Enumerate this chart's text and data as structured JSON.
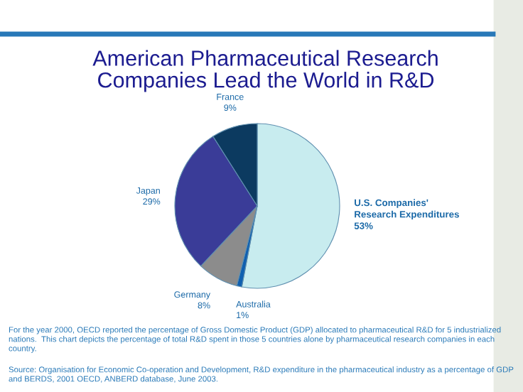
{
  "chart_data": {
    "type": "pie",
    "title": "American Pharmaceutical Research\nCompanies Lead the World in R&D",
    "categories": [
      "U.S. Companies'\nResearch Expenditures",
      "Australia",
      "Germany",
      "Japan",
      "France"
    ],
    "values": [
      53,
      1,
      8,
      29,
      9
    ],
    "value_labels": [
      "53%",
      "1%",
      "8%",
      "29%",
      "9%"
    ],
    "colors": [
      "#c8ecef",
      "#1060b0",
      "#8c8c8c",
      "#3a3c98",
      "#0c3a60"
    ],
    "annotations": [
      "For the year 2000, OECD reported the percentage of Gross Domestic Product (GDP) allocated to pharmaceutical R&D for 5 industrialized nations.  This chart depicts the percentage of total R&D spent in those 5 countries alone by pharmaceutical research companies in each country.",
      "Source: Organisation for Economic Co-operation and Development, R&D expenditure in the pharmaceutical industry as a percentage of GDP and BERDS, 2001 OECD, ANBERD database, June 2003."
    ]
  }
}
